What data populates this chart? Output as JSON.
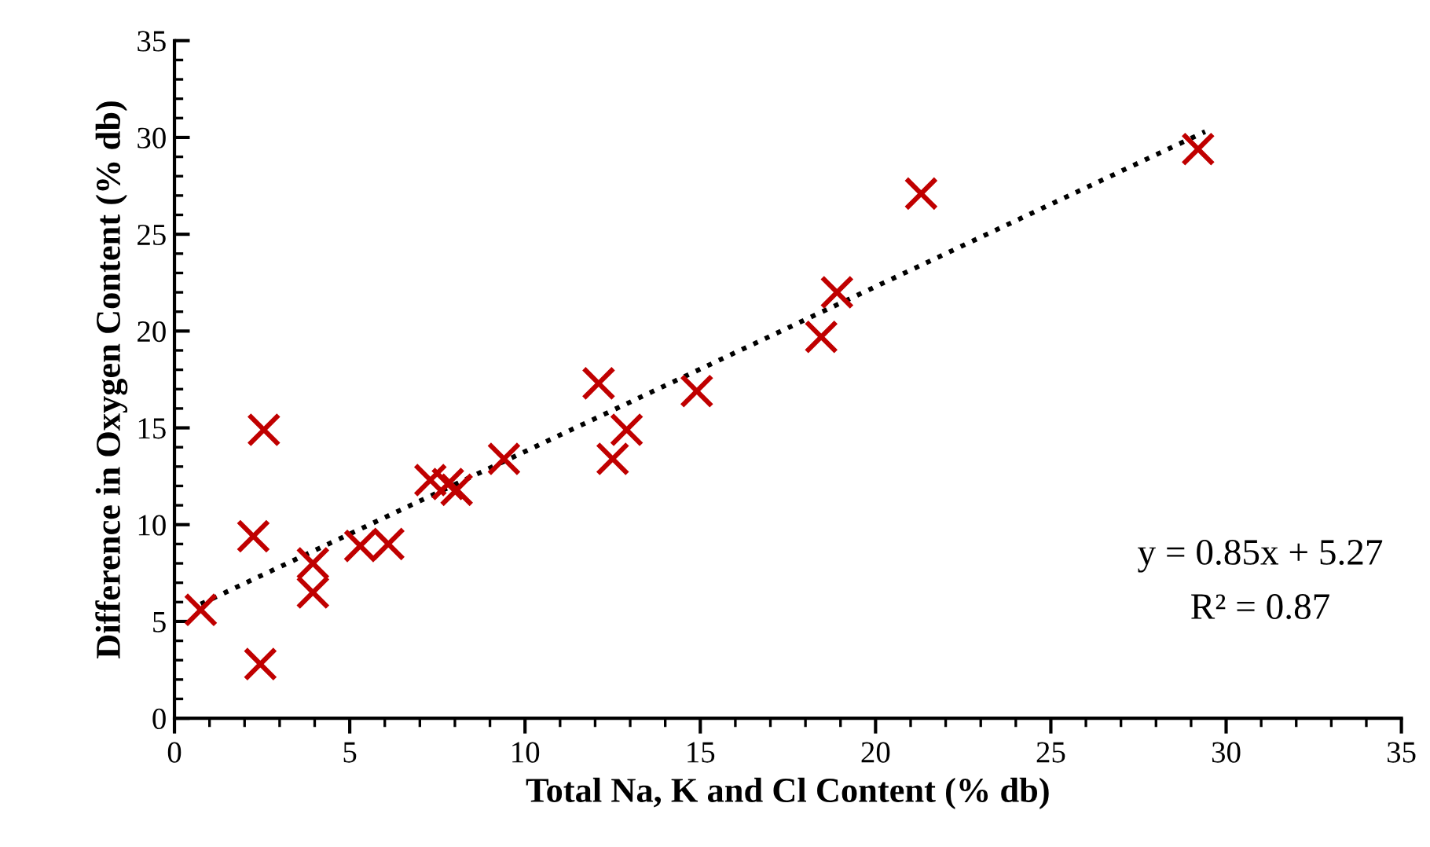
{
  "chart_data": {
    "type": "scatter",
    "xlabel": "Total Na, K and Cl Content (% db)",
    "ylabel": "Difference in Oxygen Content (% db)",
    "xlim": [
      0,
      35
    ],
    "xticks": [
      0,
      5,
      10,
      15,
      20,
      25,
      30,
      35
    ],
    "ylim": [
      0,
      35
    ],
    "yticks": [
      0,
      5,
      10,
      15,
      20,
      25,
      30,
      35
    ],
    "grid": false,
    "legend": false,
    "series": [
      {
        "color": "#c00000",
        "marker": "cross",
        "x": [
          0.75,
          2.45,
          2.25,
          2.55,
          3.95,
          3.95,
          5.3,
          6.1,
          7.3,
          7.8,
          8.05,
          9.4,
          12.1,
          12.5,
          12.9,
          14.9,
          18.45,
          18.9,
          21.3,
          29.2
        ],
        "values": [
          5.6,
          2.8,
          9.4,
          14.9,
          8.0,
          6.5,
          8.9,
          9.0,
          12.3,
          12.1,
          11.8,
          13.4,
          17.3,
          13.4,
          14.9,
          16.9,
          19.7,
          22.0,
          27.1,
          29.4
        ]
      },
      {
        "type": "line",
        "color": "#000000",
        "line_style": "dotted",
        "marker": "none",
        "x": [
          0.75,
          29.4
        ],
        "values": [
          5.9,
          30.3
        ]
      }
    ],
    "annotations": [
      "y = 0.85x + 5.27",
      "R² = 0.87"
    ]
  }
}
